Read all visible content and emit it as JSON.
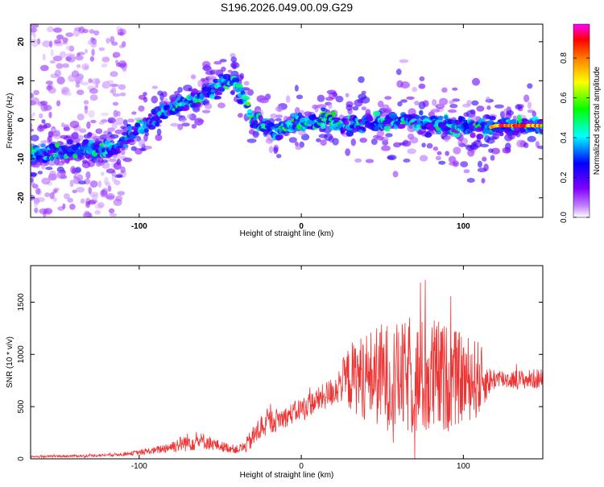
{
  "page_title": "S196.2026.049.00.09.G29",
  "chart_data": [
    {
      "type": "heatmap",
      "title": "S196.2026.049.00.09.G29",
      "xlabel": "Height of straight line (km)",
      "ylabel": "Frequency (Hz)",
      "xlim": [
        -167,
        149
      ],
      "ylim": [
        -25,
        24.5
      ],
      "xticks": [
        -100,
        0,
        100
      ],
      "xtick_labels": [
        "-100",
        "0",
        "100"
      ],
      "yticks": [
        -20,
        -10,
        0,
        10,
        20
      ],
      "ytick_labels": [
        "-20",
        "-10",
        "0",
        "10",
        "20"
      ],
      "colorbar": {
        "label": "Normalized spectral amplitude",
        "range": [
          0,
          0.97
        ],
        "ticks": [
          0.0,
          0.2,
          0.4,
          0.6,
          0.8
        ],
        "tick_labels": [
          "0.0",
          "0.2",
          "0.4",
          "0.6",
          "0.8"
        ],
        "colormap": [
          "#ffffff",
          "#8000ff",
          "#0000ff",
          "#00ffff",
          "#00ff00",
          "#ffff00",
          "#ff8000",
          "#ff0000",
          "#ff00ff"
        ]
      },
      "ridge": {
        "x": [
          -167,
          -150,
          -130,
          -115,
          -100,
          -85,
          -70,
          -60,
          -50,
          -42,
          -35,
          -30,
          -20,
          -15,
          -5,
          5,
          15,
          25,
          40,
          60,
          80,
          100,
          116,
          120,
          135,
          149
        ],
        "frequency": [
          -8.5,
          -8.5,
          -7.5,
          -7.5,
          -2,
          2,
          4.5,
          6.5,
          8.5,
          10.5,
          5,
          0,
          -2,
          -3,
          -1,
          -0.5,
          0.5,
          -1.5,
          -1,
          0,
          -1,
          -2,
          -2,
          -1.5,
          -1.5,
          -1.5
        ]
      }
    },
    {
      "type": "line",
      "xlabel": "Height of straight line (km)",
      "ylabel": "SNR (10 * v/v)",
      "xlim": [
        -167,
        149
      ],
      "ylim": [
        0,
        1850
      ],
      "xticks": [
        -100,
        0,
        100
      ],
      "xtick_labels": [
        "-100",
        "0",
        "100"
      ],
      "yticks": [
        0,
        500,
        1000,
        1500
      ],
      "ytick_labels": [
        "0",
        "500",
        "1000",
        "1500"
      ],
      "line_color": "#ee3333",
      "series": [
        {
          "name": "SNR",
          "x": [
            -167,
            -150,
            -130,
            -115,
            -100,
            -90,
            -80,
            -70,
            -60,
            -50,
            -40,
            -35,
            -30,
            -25,
            -20,
            -10,
            0,
            10,
            20,
            25,
            30,
            40,
            50,
            60,
            70,
            80,
            90,
            100,
            110,
            115,
            120,
            130,
            140,
            149
          ],
          "mean": [
            20,
            25,
            30,
            40,
            60,
            80,
            120,
            160,
            170,
            120,
            90,
            110,
            200,
            300,
            350,
            400,
            480,
            560,
            650,
            740,
            780,
            800,
            790,
            780,
            760,
            780,
            770,
            770,
            760,
            740,
            770,
            760,
            760,
            770
          ],
          "amplitude": [
            8,
            10,
            12,
            15,
            25,
            35,
            60,
            90,
            80,
            50,
            40,
            60,
            110,
            130,
            120,
            100,
            110,
            120,
            150,
            200,
            330,
            420,
            520,
            520,
            560,
            600,
            520,
            420,
            380,
            150,
            100,
            90,
            95,
            100
          ]
        }
      ]
    }
  ]
}
